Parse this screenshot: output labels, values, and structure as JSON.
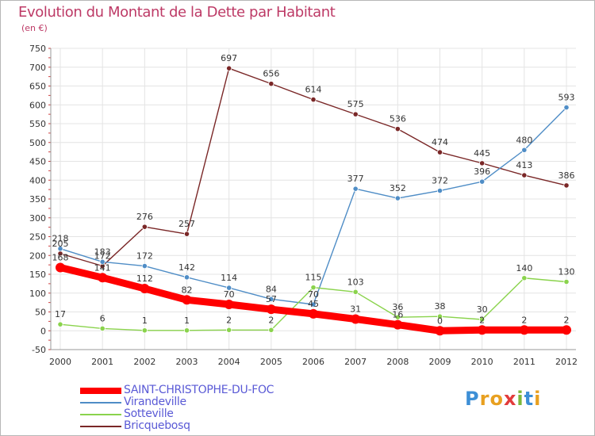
{
  "title": "Evolution du Montant de la Dette par Habitant",
  "unit_label": "(en €)",
  "logo": {
    "letters": [
      "P",
      "r",
      "o",
      "x",
      "i",
      "t",
      "i"
    ],
    "colors": [
      "#3d8fd6",
      "#e8a020",
      "#e8a020",
      "#e23b3b",
      "#7cb83a",
      "#3d8fd6",
      "#e8a020"
    ]
  },
  "chart_data": {
    "type": "line",
    "x": [
      "2000",
      "2001",
      "2002",
      "2003",
      "2004",
      "2005",
      "2006",
      "2007",
      "2008",
      "2009",
      "2010",
      "2011",
      "2012"
    ],
    "ylim": [
      -50,
      750
    ],
    "yticks": [
      -50,
      0,
      50,
      100,
      150,
      200,
      250,
      300,
      350,
      400,
      450,
      500,
      550,
      600,
      650,
      700,
      750
    ],
    "grid": true,
    "legend_position": "bottom-left",
    "series": [
      {
        "name": "SAINT-CHRISTOPHE-DU-FOC",
        "color": "#ff0000",
        "values": [
          168,
          141,
          112,
          82,
          70,
          57,
          45,
          31,
          16,
          0,
          2,
          2,
          2
        ],
        "labels": [
          "168",
          "141",
          "112",
          "82",
          "70",
          "57",
          "45",
          "31",
          "16",
          "0",
          "2",
          "2",
          "2"
        ]
      },
      {
        "name": "Virandeville",
        "color": "#4f8dc6",
        "values": [
          218,
          183,
          172,
          142,
          114,
          84,
          70,
          377,
          352,
          372,
          396,
          480,
          593
        ],
        "labels": [
          "218",
          "183",
          "172",
          "142",
          "114",
          "84",
          "70",
          "377",
          "352",
          "372",
          "396",
          "480",
          "593"
        ]
      },
      {
        "name": "Sotteville",
        "color": "#8ad34c",
        "values": [
          17,
          6,
          1,
          1,
          2,
          2,
          115,
          103,
          36,
          38,
          30,
          140,
          130
        ],
        "labels": [
          "17",
          "6",
          "1",
          "1",
          "2",
          "2",
          "115",
          "103",
          "36",
          "38",
          "30",
          "140",
          "130"
        ]
      },
      {
        "name": "Bricquebosq",
        "color": "#7a2727",
        "values": [
          205,
          172,
          276,
          257,
          697,
          656,
          614,
          575,
          536,
          474,
          445,
          413,
          386
        ],
        "labels": [
          "205",
          "172",
          "276",
          "257",
          "697",
          "656",
          "614",
          "575",
          "536",
          "474",
          "445",
          "413",
          "386"
        ]
      }
    ]
  }
}
